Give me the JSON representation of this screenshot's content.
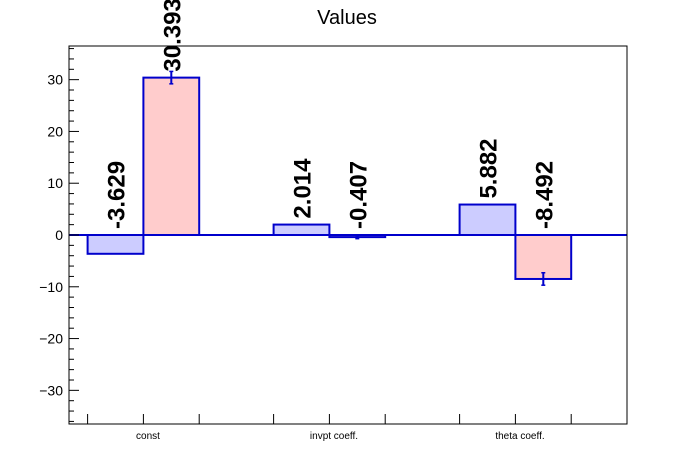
{
  "chart_data": {
    "type": "bar",
    "title": "Values",
    "xlabel": "",
    "ylabel": "",
    "categories": [
      "const",
      "invpt coeff.",
      "theta coeff."
    ],
    "ylim": [
      -36.5,
      36.5
    ],
    "yticks": [
      -30,
      -20,
      -10,
      0,
      10,
      20,
      30
    ],
    "grid": false,
    "series": [
      {
        "values": [
          -3.629,
          2.014,
          5.882
        ],
        "labels": [
          "-3.629",
          "2.014",
          "5.882"
        ],
        "errors": [
          0,
          0,
          0
        ],
        "fill": "#ccccff",
        "stroke": "#0000cc"
      },
      {
        "values": [
          30.393,
          -0.407,
          -8.492
        ],
        "labels": [
          "30.393",
          "-0.407",
          "-8.492"
        ],
        "errors": [
          1.2,
          0.3,
          1.2
        ],
        "fill": "#ffcccc",
        "stroke": "#0000cc"
      }
    ],
    "zero_line_color": "#0000cc"
  }
}
